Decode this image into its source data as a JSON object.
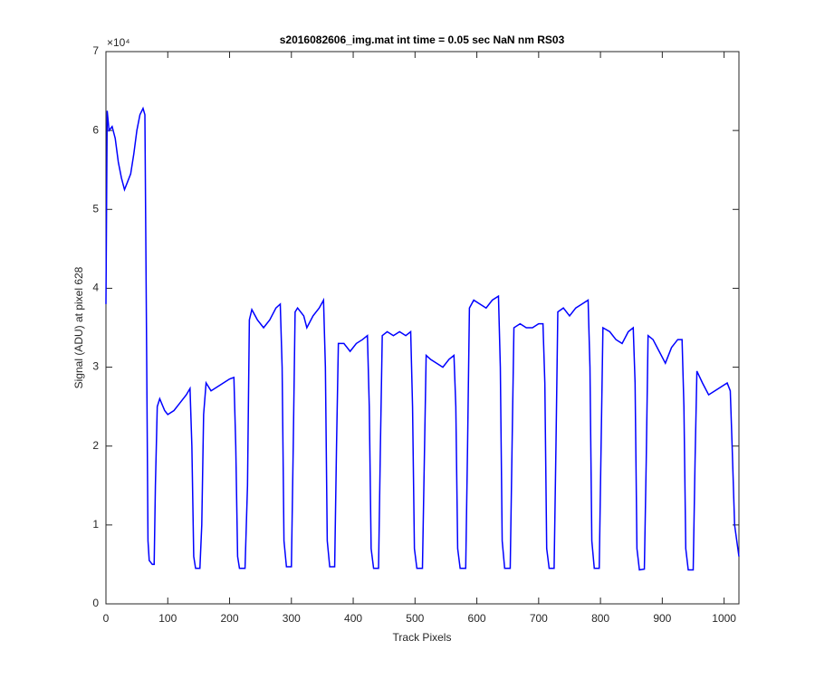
{
  "chart_data": {
    "type": "line",
    "title": "s2016082606_img.mat int time = 0.05 sec  NaN nm RS03",
    "x_label": "Track Pixels",
    "y_label": "Signal (ADU) at pixel 628",
    "y_exponent_label": "×10⁴",
    "xlim": [
      0,
      1024
    ],
    "ylim": [
      0,
      70000
    ],
    "xticks": [
      0,
      100,
      200,
      300,
      400,
      500,
      600,
      700,
      800,
      900,
      1000
    ],
    "yticks": [
      {
        "value": 0,
        "label": "0"
      },
      {
        "value": 10000,
        "label": "1"
      },
      {
        "value": 20000,
        "label": "2"
      },
      {
        "value": 30000,
        "label": "3"
      },
      {
        "value": 40000,
        "label": "4"
      },
      {
        "value": 50000,
        "label": "5"
      },
      {
        "value": 60000,
        "label": "6"
      },
      {
        "value": 70000,
        "label": "7"
      }
    ],
    "grid": false,
    "series": [
      {
        "color": "#0000ff",
        "x": [
          0,
          2,
          5,
          10,
          15,
          20,
          25,
          30,
          35,
          40,
          45,
          50,
          55,
          60,
          63,
          66,
          68,
          70,
          75,
          78,
          80,
          83,
          87,
          95,
          100,
          110,
          120,
          130,
          136,
          139,
          142,
          145,
          152,
          155,
          158,
          162,
          170,
          180,
          190,
          200,
          207,
          210,
          213,
          216,
          225,
          229,
          232,
          236,
          245,
          255,
          265,
          275,
          282,
          285,
          288,
          292,
          300,
          303,
          306,
          310,
          320,
          325,
          335,
          345,
          352,
          355,
          358,
          362,
          370,
          373,
          376,
          385,
          395,
          405,
          415,
          423,
          426,
          429,
          433,
          441,
          444,
          447,
          455,
          465,
          475,
          485,
          493,
          496,
          499,
          503,
          512,
          515,
          518,
          525,
          535,
          545,
          555,
          563,
          566,
          569,
          573,
          582,
          585,
          588,
          595,
          605,
          615,
          625,
          635,
          638,
          641,
          645,
          654,
          657,
          660,
          670,
          680,
          690,
          700,
          707,
          710,
          713,
          717,
          725,
          728,
          731,
          740,
          750,
          760,
          770,
          780,
          783,
          786,
          790,
          798,
          801,
          804,
          815,
          825,
          835,
          845,
          853,
          856,
          859,
          863,
          871,
          874,
          877,
          885,
          895,
          905,
          915,
          925,
          932,
          935,
          938,
          942,
          950,
          953,
          956,
          965,
          975,
          985,
          995,
          1005,
          1010,
          1013,
          1017,
          1024
        ],
        "values": [
          38000,
          62500,
          60000,
          60500,
          59000,
          56000,
          54000,
          52500,
          53500,
          54500,
          57000,
          60000,
          62000,
          62800,
          62000,
          30000,
          8000,
          5500,
          5000,
          5000,
          15000,
          25000,
          26000,
          24500,
          24000,
          24500,
          25500,
          26500,
          27300,
          20000,
          6000,
          4500,
          4500,
          10000,
          24000,
          28000,
          27000,
          27500,
          28000,
          28500,
          28700,
          20000,
          6000,
          4500,
          4500,
          15000,
          36000,
          37300,
          36000,
          35000,
          36000,
          37500,
          38000,
          30000,
          8000,
          4700,
          4700,
          20000,
          37000,
          37500,
          36500,
          35000,
          36500,
          37500,
          38500,
          30000,
          8000,
          4700,
          4700,
          20000,
          33000,
          33000,
          32000,
          33000,
          33500,
          34000,
          25000,
          7000,
          4500,
          4500,
          20000,
          34000,
          34500,
          34000,
          34500,
          34000,
          34500,
          25000,
          7000,
          4500,
          4500,
          18000,
          31500,
          31000,
          30500,
          30000,
          31000,
          31500,
          25000,
          7000,
          4500,
          4500,
          20000,
          37500,
          38500,
          38000,
          37500,
          38500,
          39000,
          30000,
          8000,
          4500,
          4500,
          20000,
          35000,
          35500,
          35000,
          35000,
          35500,
          35500,
          28000,
          7000,
          4500,
          4500,
          20000,
          37000,
          37500,
          36500,
          37500,
          38000,
          38500,
          30000,
          8000,
          4500,
          4500,
          20000,
          35000,
          34500,
          33500,
          33000,
          34500,
          35000,
          28000,
          7000,
          4300,
          4400,
          18000,
          34000,
          33500,
          32000,
          30500,
          32500,
          33500,
          33500,
          25000,
          7000,
          4300,
          4300,
          18000,
          29500,
          28000,
          26500,
          27000,
          27500,
          28000,
          27000,
          20000,
          10000,
          6000
        ]
      }
    ]
  }
}
